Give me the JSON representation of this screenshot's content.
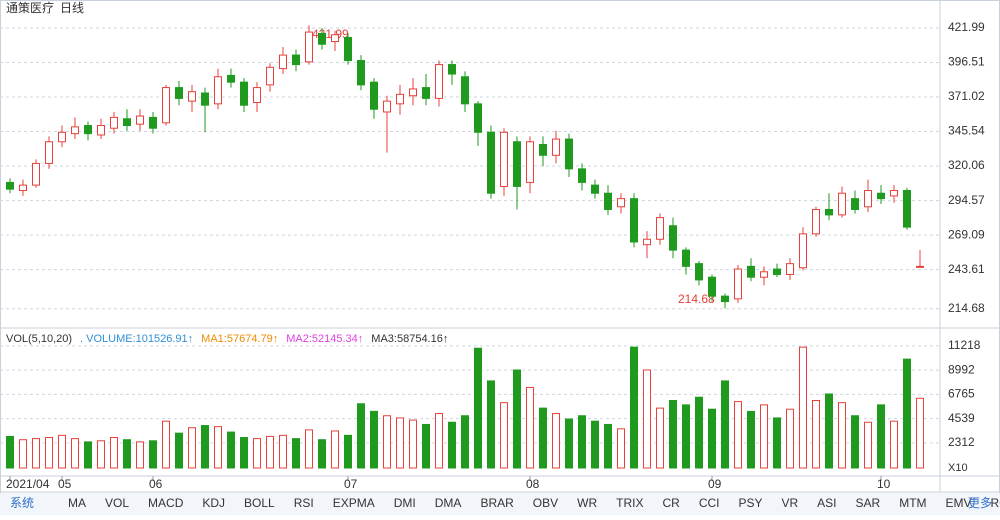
{
  "header": {
    "title": "通策医疗",
    "period": "日线"
  },
  "chart_data": [
    {
      "type": "candlestick",
      "annotations": [
        "421.99",
        "214.68"
      ],
      "up_color": "#e8403a",
      "down_color": "#1f9a1f",
      "categories": [
        "2021/04",
        null,
        null,
        null,
        "05",
        null,
        null,
        null,
        null,
        null,
        null,
        "06",
        null,
        null,
        null,
        null,
        null,
        null,
        null,
        null,
        null,
        null,
        null,
        null,
        null,
        null,
        "07",
        null,
        null,
        null,
        null,
        null,
        null,
        null,
        null,
        null,
        null,
        null,
        null,
        null,
        "08",
        null,
        null,
        null,
        null,
        null,
        null,
        null,
        null,
        null,
        null,
        null,
        null,
        null,
        "09",
        null,
        null,
        null,
        null,
        null,
        null,
        null,
        null,
        null,
        null,
        null,
        null,
        "10",
        null,
        null,
        null
      ],
      "open": [
        308,
        302,
        306,
        322,
        338,
        344,
        350,
        343,
        348,
        355,
        351,
        356,
        352,
        378,
        368,
        374,
        366,
        387,
        382,
        367,
        380,
        392,
        402,
        397,
        418,
        412,
        415,
        398,
        382,
        360,
        366,
        372,
        378,
        370,
        395,
        386,
        366,
        345,
        305,
        338,
        308,
        336,
        328,
        340,
        318,
        306,
        300,
        290,
        296,
        262,
        266,
        276,
        258,
        248,
        238,
        224,
        222,
        246,
        238,
        244,
        240,
        245,
        270,
        288,
        284,
        296,
        290,
        300,
        298,
        302,
        246
      ],
      "close": [
        303,
        306,
        322,
        338,
        345,
        349,
        344,
        350,
        356,
        350,
        357,
        348,
        378,
        370,
        375,
        365,
        386,
        382,
        365,
        378,
        393,
        402,
        395,
        419,
        410,
        417,
        398,
        380,
        362,
        368,
        373,
        377,
        370,
        395,
        388,
        366,
        345,
        300,
        345,
        305,
        338,
        328,
        340,
        318,
        308,
        300,
        288,
        296,
        264,
        266,
        282,
        258,
        246,
        236,
        224,
        220,
        244,
        238,
        242,
        240,
        248,
        270,
        288,
        284,
        300,
        288,
        302,
        296,
        302,
        275,
        246
      ],
      "high": [
        311,
        310,
        325,
        342,
        350,
        356,
        353,
        355,
        360,
        362,
        362,
        360,
        380,
        383,
        380,
        378,
        392,
        392,
        385,
        382,
        396,
        408,
        406,
        424,
        422,
        420,
        418,
        402,
        385,
        372,
        380,
        385,
        388,
        398,
        398,
        390,
        368,
        350,
        348,
        342,
        342,
        342,
        346,
        344,
        322,
        310,
        306,
        300,
        300,
        272,
        285,
        282,
        260,
        250,
        240,
        226,
        247,
        252,
        246,
        248,
        252,
        275,
        290,
        300,
        305,
        302,
        310,
        306,
        306,
        304,
        258
      ],
      "low": [
        300,
        298,
        304,
        318,
        334,
        340,
        339,
        340,
        344,
        346,
        346,
        344,
        350,
        365,
        360,
        345,
        362,
        378,
        360,
        360,
        375,
        388,
        390,
        395,
        406,
        405,
        395,
        376,
        355,
        330,
        358,
        365,
        365,
        364,
        380,
        360,
        335,
        296,
        298,
        288,
        300,
        320,
        322,
        312,
        302,
        296,
        284,
        285,
        260,
        252,
        262,
        252,
        240,
        232,
        220,
        215,
        219,
        235,
        232,
        238,
        236,
        243,
        268,
        280,
        282,
        285,
        286,
        292,
        293,
        273,
        245
      ],
      "ylim": [
        202.7,
        431.6
      ],
      "yticks": [
        421.99,
        396.51,
        371.02,
        345.54,
        320.06,
        294.57,
        269.09,
        243.61,
        214.68
      ],
      "grid": true
    },
    {
      "type": "volume",
      "legend": [
        "VOL(5,10,20)",
        ". VOLUME:101526.91↑",
        "MA1:57674.79↑",
        "MA2:52145.34↑",
        "MA3:58754.16↑"
      ],
      "legend_colors": [
        "#333333",
        "#2f8fd8",
        "#f08a00",
        "#e040e0",
        "#333333"
      ],
      "unit": "X10",
      "values": [
        2900,
        2600,
        2700,
        2800,
        3000,
        2700,
        2400,
        2500,
        2800,
        2600,
        2400,
        2500,
        4300,
        3200,
        3700,
        3900,
        3800,
        3300,
        2800,
        2700,
        2900,
        3000,
        2700,
        3500,
        2600,
        3400,
        3000,
        5900,
        5200,
        4800,
        4600,
        4400,
        4000,
        5000,
        4200,
        4800,
        11000,
        8000,
        6000,
        9000,
        7400,
        5500,
        5000,
        4500,
        4800,
        4300,
        4000,
        3600,
        11100,
        9000,
        5500,
        6200,
        5800,
        6500,
        5400,
        8000,
        6100,
        5200,
        5800,
        4600,
        5400,
        11100,
        6200,
        6800,
        6000,
        4800,
        4200,
        5800,
        4300,
        10000,
        6400
      ],
      "ylim": [
        0,
        12400
      ],
      "yticks": [
        11218,
        8992,
        6765,
        4539,
        2312
      ]
    }
  ],
  "toolbar": [
    "系统",
    "MA",
    "VOL",
    "MACD",
    "KDJ",
    "BOLL",
    "RSI",
    "EXPMA",
    "DMI",
    "DMA",
    "BRAR",
    "OBV",
    "WR",
    "TRIX",
    "CR",
    "CCI",
    "PSY",
    "VR",
    "ASI",
    "SAR",
    "MTM",
    "EMV",
    "ROC",
    "更多"
  ]
}
